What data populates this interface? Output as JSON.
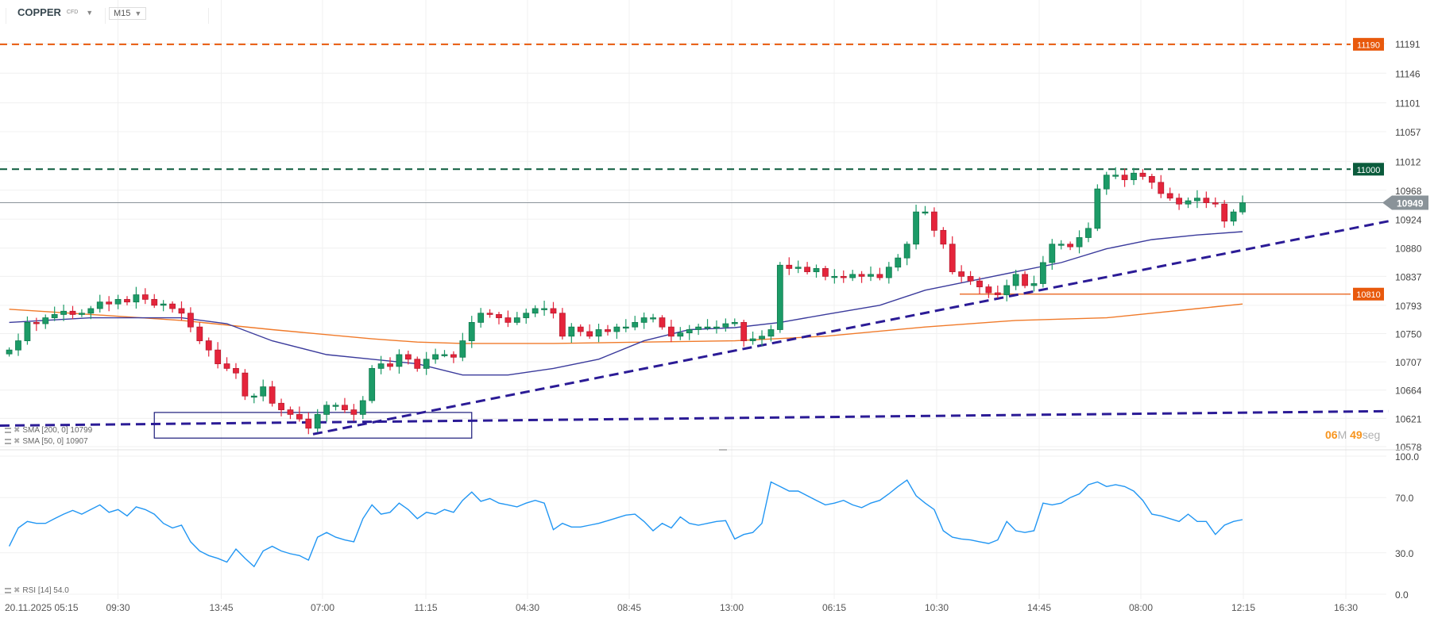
{
  "header": {
    "symbol": "COPPER",
    "instrument_type": "CFD",
    "timeframe": "M15"
  },
  "countdown": {
    "minutes": "06",
    "minutes_unit": "M",
    "seconds": "49",
    "seconds_unit": "seg"
  },
  "legend": {
    "sma200": "SMA [200, 0] 10799",
    "sma50": "SMA [50, 0] 10907",
    "rsi": "RSI [14] 54.0"
  },
  "colors": {
    "up": "#1c9b67",
    "down": "#e5243b",
    "sma50": "#3b3b9c",
    "sma200": "#f07a2a",
    "trend": "#2b1b96",
    "rsi": "#2196f3",
    "level_orange": "#e8590c",
    "level_green": "#0b5b3c",
    "current": "#8a9399"
  },
  "chart_data": [
    {
      "type": "candlestick",
      "price_axis": {
        "ticks": [
          "11191",
          "11146",
          "11101",
          "11057",
          "11012",
          "10968",
          "10924",
          "10880",
          "10837",
          "10793",
          "10750",
          "10707",
          "10664",
          "10621",
          "10578"
        ],
        "range": [
          10578,
          11191
        ]
      },
      "time_axis": {
        "ticks": [
          "20.11.2025  05:15",
          "09:30",
          "13:45",
          "07:00",
          "11:15",
          "04:30",
          "08:45",
          "13:00",
          "06:15",
          "10:30",
          "14:45",
          "08:00",
          "12:15",
          "16:30"
        ]
      },
      "grid": true,
      "closes": [
        10725,
        10739,
        10767,
        10765,
        10774,
        10779,
        10784,
        10779,
        10781,
        10788,
        10798,
        10795,
        10802,
        10798,
        10809,
        10802,
        10793,
        10795,
        10788,
        10781,
        10760,
        10739,
        10725,
        10704,
        10697,
        10690,
        10655,
        10655,
        10669,
        10644,
        10634,
        10627,
        10620,
        10606,
        10627,
        10641,
        10641,
        10634,
        10627,
        10648,
        10697,
        10704,
        10700,
        10718,
        10711,
        10697,
        10711,
        10718,
        10718,
        10714,
        10739,
        10767,
        10781,
        10779,
        10774,
        10767,
        10774,
        10781,
        10788,
        10788,
        10781,
        10746,
        10760,
        10753,
        10746,
        10756,
        10753,
        10760,
        10760,
        10767,
        10774,
        10774,
        10760,
        10746,
        10751,
        10756,
        10760,
        10760,
        10760,
        10765,
        10767,
        10739,
        10742,
        10746,
        10756,
        10854,
        10849,
        10851,
        10844,
        10849,
        10837,
        10837,
        10835,
        10840,
        10837,
        10840,
        10835,
        10851,
        10865,
        10886,
        10935,
        10935,
        10907,
        10886,
        10844,
        10837,
        10830,
        10821,
        10812,
        10809,
        10823,
        10840,
        10823,
        10826,
        10858,
        10886,
        10886,
        10882,
        10896,
        10910,
        10970,
        10991,
        10991,
        10984,
        10994,
        10989,
        10980,
        10963,
        10956,
        10947,
        10952,
        10956,
        10949,
        10947,
        10921,
        10935,
        10949
      ],
      "sma50": [
        [
          0,
          10767
        ],
        [
          9,
          10774
        ],
        [
          19,
          10774
        ],
        [
          24,
          10765
        ],
        [
          29,
          10739
        ],
        [
          35,
          10718
        ],
        [
          40,
          10711
        ],
        [
          45,
          10704
        ],
        [
          50,
          10687
        ],
        [
          55,
          10687
        ],
        [
          60,
          10697
        ],
        [
          65,
          10711
        ],
        [
          70,
          10739
        ],
        [
          75,
          10756
        ],
        [
          80,
          10759
        ],
        [
          85,
          10767
        ],
        [
          90,
          10779
        ],
        [
          96,
          10793
        ],
        [
          101,
          10816
        ],
        [
          106,
          10830
        ],
        [
          111,
          10844
        ],
        [
          116,
          10858
        ],
        [
          121,
          10879
        ],
        [
          126,
          10893
        ],
        [
          131,
          10900
        ],
        [
          136,
          10905
        ]
      ],
      "sma200": [
        [
          0,
          10787
        ],
        [
          9,
          10779
        ],
        [
          19,
          10770
        ],
        [
          29,
          10756
        ],
        [
          40,
          10742
        ],
        [
          45,
          10737
        ],
        [
          50,
          10735
        ],
        [
          60,
          10735
        ],
        [
          70,
          10737
        ],
        [
          80,
          10739
        ],
        [
          90,
          10746
        ],
        [
          101,
          10760
        ],
        [
          111,
          10770
        ],
        [
          121,
          10774
        ],
        [
          126,
          10781
        ],
        [
          131,
          10788
        ],
        [
          136,
          10795
        ]
      ],
      "levels": [
        {
          "price": 11190,
          "label": "11190",
          "style": "dashed",
          "color": "#e8590c"
        },
        {
          "price": 11000,
          "label": "11000",
          "style": "dashed",
          "color": "#0b5b3c"
        },
        {
          "price": 10810,
          "label": "10810",
          "style": "solid",
          "color": "#e8590c"
        }
      ],
      "current_price": {
        "price": 10949,
        "label": "10949"
      },
      "trendlines": [
        {
          "from": [
            33.5,
            10597
          ],
          "to": [
            "right",
            10921
          ]
        },
        {
          "from": [
            "left",
            10610
          ],
          "to": [
            "right",
            10632
          ]
        }
      ],
      "box": {
        "from_index": 16,
        "to_index": 51,
        "top": 10630,
        "bottom": 10591
      }
    },
    {
      "type": "line",
      "name": "RSI [14]",
      "y_axis": {
        "ticks": [
          "100.0",
          "70.0",
          "30.0",
          "0.0"
        ],
        "range": [
          0,
          100
        ]
      },
      "values": [
        34.7,
        48,
        52.7,
        51.3,
        51.3,
        54.7,
        58,
        60.7,
        58,
        61.3,
        64.7,
        59.3,
        61.3,
        56.7,
        63.3,
        61.3,
        58,
        51.3,
        48,
        50,
        38,
        31.3,
        28,
        26,
        23.3,
        32.7,
        26,
        20,
        31.3,
        34.7,
        31.3,
        29.3,
        28,
        24.7,
        41.3,
        44.7,
        41.3,
        39.3,
        38,
        54.7,
        64.7,
        58,
        59.3,
        66,
        61.3,
        54.7,
        59.3,
        58,
        61.3,
        59.3,
        68,
        74,
        67.3,
        69.3,
        66,
        64.7,
        63.3,
        66,
        68,
        66,
        46.7,
        51.3,
        48.7,
        48.7,
        50,
        51.3,
        53.3,
        55.3,
        57.3,
        58,
        52.7,
        46,
        51.3,
        48,
        56,
        51.3,
        50,
        51.3,
        52.7,
        53.3,
        40,
        43.3,
        44.7,
        51.3,
        81.3,
        78,
        74.7,
        74.7,
        71.3,
        68,
        64.7,
        66,
        68,
        64.7,
        62.7,
        66,
        68,
        72.7,
        78,
        82.7,
        71.3,
        66,
        61.3,
        46,
        41.3,
        40,
        39.3,
        38,
        36.7,
        39.3,
        52.7,
        46,
        44.7,
        46,
        66,
        64.7,
        66,
        70,
        72.7,
        79.3,
        81.3,
        78,
        79.3,
        78,
        74.7,
        68,
        58,
        56.7,
        54.7,
        52.7,
        58,
        52.7,
        52.7,
        43.3,
        50,
        52.7,
        54
      ]
    }
  ]
}
